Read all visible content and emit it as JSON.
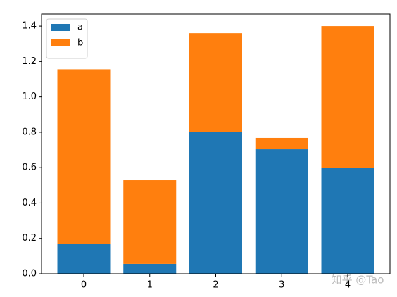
{
  "chart_data": {
    "type": "stacked-bar",
    "x": [
      0,
      1,
      2,
      3,
      4
    ],
    "series": [
      {
        "name": "a",
        "color": "#1f77b4",
        "values": [
          0.171,
          0.056,
          0.8,
          0.704,
          0.597
        ]
      },
      {
        "name": "b",
        "color": "#ff7f0e",
        "values": [
          0.985,
          0.473,
          0.56,
          0.064,
          0.803
        ]
      }
    ],
    "xlim": [
      -0.64,
      4.64
    ],
    "xticks": [
      0,
      1,
      2,
      3,
      4
    ],
    "ylim": [
      0,
      1.468
    ],
    "yticks": [
      {
        "value": 0,
        "label": "0.0"
      },
      {
        "value": 0.2,
        "label": "0.2"
      },
      {
        "value": 0.4,
        "label": "0.4"
      },
      {
        "value": 0.6,
        "label": "0.6"
      },
      {
        "value": 0.8,
        "label": "0.8"
      },
      {
        "value": 1.0,
        "label": "1.0"
      },
      {
        "value": 1.2,
        "label": "1.2"
      },
      {
        "value": 1.4,
        "label": "1.4"
      }
    ],
    "legend": "upper left",
    "watermark": "知乎 @Tao"
  }
}
